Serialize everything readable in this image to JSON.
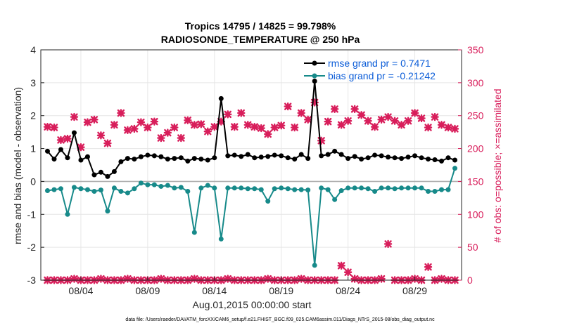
{
  "chart_data": {
    "type": "line",
    "title": "Tropics 14795 / 14825 = 99.798%",
    "subtitle": "RADIOSONDE_TEMPERATURE @ 250 hPa",
    "xlabel": "Aug.01,2015 00:00:00 start",
    "ylabel_left": "rmse and bias (model - observation)",
    "ylabel_right": "# of obs: o=possible; ×=assimilated",
    "footer": "data file: /Users/raeder/DAI/ATM_forcXX/CAM6_setup/f.e21.FHIST_BGC.f09_025.CAM6assim.011/Diags_NTrS_2015-08/obs_diag_output.nc",
    "xlim": [
      0.5,
      32
    ],
    "ylim_left": [
      -3,
      4
    ],
    "ylim_right": [
      0,
      350
    ],
    "x_ticks": [
      3.5,
      8.5,
      13.5,
      18.5,
      23.5,
      28.5
    ],
    "x_tick_labels": [
      "08/04",
      "08/09",
      "08/14",
      "08/19",
      "08/24",
      "08/29"
    ],
    "y_ticks_left": [
      -3,
      -2,
      -1,
      0,
      1,
      2,
      3,
      4
    ],
    "y_ticks_right": [
      0,
      50,
      100,
      150,
      200,
      250,
      300,
      350
    ],
    "grid": true,
    "legend_position": "top-right",
    "colors": {
      "rmse": "#000000",
      "bias": "#178a8a",
      "obs": "#d81e5b",
      "legend_text": "#0a5cd8",
      "zero_line": "#b0b0b0"
    },
    "x": [
      1.0,
      1.5,
      2.0,
      2.5,
      3.0,
      3.5,
      4.0,
      4.5,
      5.0,
      5.5,
      6.0,
      6.5,
      7.0,
      7.5,
      8.0,
      8.5,
      9.0,
      9.5,
      10.0,
      10.5,
      11.0,
      11.5,
      12.0,
      12.5,
      13.0,
      13.5,
      14.0,
      14.5,
      15.0,
      15.5,
      16.0,
      16.5,
      17.0,
      17.5,
      18.0,
      18.5,
      19.0,
      19.5,
      20.0,
      20.5,
      21.0,
      21.5,
      22.0,
      22.5,
      23.0,
      23.5,
      24.0,
      24.5,
      25.0,
      25.5,
      26.0,
      26.5,
      27.0,
      27.5,
      28.0,
      28.5,
      29.0,
      29.5,
      30.0,
      30.5,
      31.0,
      31.5
    ],
    "series": [
      {
        "name": "rmse grand pr = 0.7471",
        "values": [
          0.92,
          0.68,
          0.97,
          0.72,
          1.48,
          0.65,
          0.75,
          0.2,
          0.28,
          0.15,
          0.3,
          0.6,
          0.7,
          0.68,
          0.75,
          0.8,
          0.78,
          0.75,
          0.68,
          0.7,
          0.72,
          0.62,
          0.7,
          0.68,
          0.65,
          0.72,
          2.52,
          0.78,
          0.8,
          0.76,
          0.82,
          0.72,
          0.74,
          0.76,
          0.8,
          0.78,
          0.72,
          0.68,
          0.82,
          0.7,
          3.05,
          0.78,
          0.82,
          0.92,
          0.82,
          0.7,
          0.76,
          0.68,
          0.72,
          0.8,
          0.78,
          0.74,
          0.72,
          0.7,
          0.74,
          0.78,
          0.72,
          0.68,
          0.66,
          0.62,
          0.72,
          0.65
        ]
      },
      {
        "name": "bias grand pr = -0.21242",
        "values": [
          -0.28,
          -0.25,
          -0.22,
          -1.0,
          -0.18,
          -0.22,
          -0.25,
          -0.3,
          -0.26,
          -0.9,
          -0.2,
          -0.3,
          -0.35,
          -0.22,
          -0.05,
          -0.1,
          -0.1,
          -0.15,
          -0.12,
          -0.2,
          -0.18,
          -0.3,
          -1.55,
          -0.2,
          -0.12,
          -0.2,
          -1.75,
          -0.2,
          -0.2,
          -0.2,
          -0.22,
          -0.22,
          -0.25,
          -0.6,
          -0.22,
          -0.2,
          -0.22,
          -0.25,
          -0.25,
          -0.26,
          -2.55,
          -0.2,
          -0.25,
          -0.55,
          -0.28,
          -0.2,
          -0.2,
          -0.2,
          -0.22,
          -0.3,
          -0.2,
          -0.2,
          -0.22,
          -0.2,
          -0.2,
          -0.2,
          -0.2,
          -0.3,
          -0.3,
          -0.25,
          -0.25,
          0.4
        ]
      }
    ],
    "obs_assimilated": [
      233,
      232,
      213,
      215,
      248,
      202,
      240,
      244,
      220,
      208,
      236,
      254,
      228,
      230,
      240,
      232,
      241,
      216,
      224,
      232,
      216,
      243,
      236,
      237,
      226,
      233,
      241,
      252,
      233,
      254,
      236,
      233,
      231,
      222,
      232,
      235,
      264,
      232,
      254,
      244,
      270,
      212,
      241,
      260,
      236,
      242,
      260,
      251,
      242,
      233,
      244,
      248,
      242,
      236,
      242,
      254,
      246,
      232,
      248,
      236,
      232,
      230
    ],
    "obs_possible": [
      233,
      232,
      213,
      215,
      248,
      202,
      240,
      244,
      220,
      208,
      236,
      254,
      228,
      230,
      240,
      232,
      241,
      216,
      224,
      232,
      216,
      243,
      236,
      237,
      226,
      233,
      241,
      252,
      233,
      254,
      236,
      233,
      231,
      222,
      232,
      235,
      264,
      232,
      254,
      244,
      270,
      212,
      241,
      260,
      236,
      242,
      260,
      251,
      242,
      233,
      244,
      248,
      242,
      236,
      242,
      254,
      246,
      232,
      248,
      236,
      232,
      230
    ],
    "obs_low_assimilated": [
      0,
      0,
      0,
      0,
      2,
      0,
      0,
      0,
      2,
      0,
      0,
      0,
      2,
      0,
      0,
      0,
      0,
      2,
      0,
      0,
      0,
      0,
      2,
      0,
      0,
      0,
      0,
      2,
      0,
      0,
      0,
      0,
      0,
      2,
      0,
      0,
      0,
      0,
      2,
      0,
      0,
      0,
      0,
      0,
      22,
      12,
      2,
      0,
      0,
      0,
      2,
      55,
      0,
      0,
      0,
      2,
      0,
      20,
      0,
      2,
      0,
      0
    ]
  }
}
